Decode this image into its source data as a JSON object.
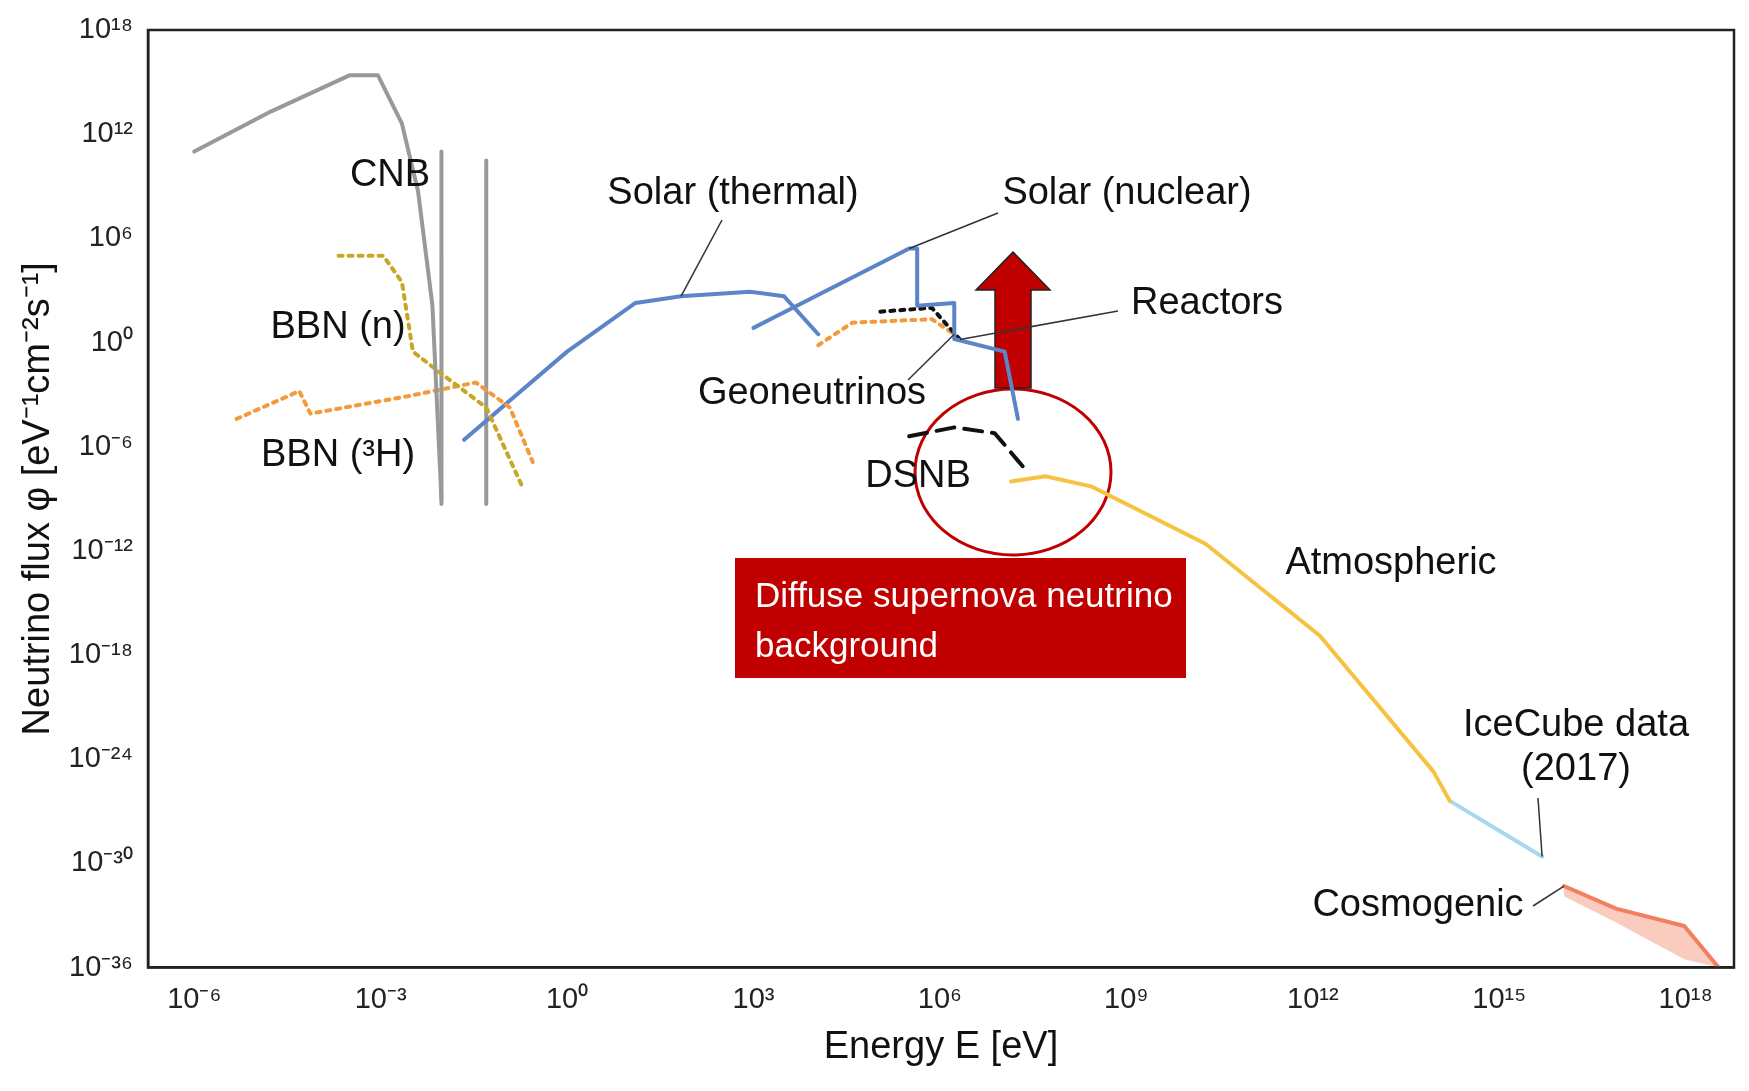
{
  "chart_data": {
    "type": "line",
    "xlabel": "Energy E [eV]",
    "ylabel": "Neutrino flux φ [eV⁻¹cm⁻²s⁻¹]",
    "log": "xy",
    "grid": false,
    "legend": false,
    "marker": "none",
    "xlim": [
      1.8e-07,
      6e+18
    ],
    "ylim": [
      1e-36,
      1e+18
    ],
    "xticks": [
      {
        "value": 1e-06,
        "label": "10⁻⁶"
      },
      {
        "value": 0.001,
        "label": "10⁻³"
      },
      {
        "value": 1,
        "label": "10⁰"
      },
      {
        "value": 1000.0,
        "label": "10³"
      },
      {
        "value": 1000000.0,
        "label": "10⁶"
      },
      {
        "value": 1000000000.0,
        "label": "10⁹"
      },
      {
        "value": 1000000000000.0,
        "label": "10¹²"
      },
      {
        "value": 1000000000000000.0,
        "label": "10¹⁵"
      },
      {
        "value": 1e+18,
        "label": "10¹⁸"
      }
    ],
    "yticks": [
      {
        "value": 1e-36,
        "label": "10⁻³⁶"
      },
      {
        "value": 1e-30,
        "label": "10⁻³⁰"
      },
      {
        "value": 1e-24,
        "label": "10⁻²⁴"
      },
      {
        "value": 1e-18,
        "label": "10⁻¹⁸"
      },
      {
        "value": 1e-12,
        "label": "10⁻¹²"
      },
      {
        "value": 1e-06,
        "label": "10⁻⁶"
      },
      {
        "value": 1,
        "label": "10⁰"
      },
      {
        "value": 1000000.0,
        "label": "10⁶"
      },
      {
        "value": 1000000000000.0,
        "label": "10¹²"
      },
      {
        "value": 1e+18,
        "label": "10¹⁸"
      }
    ],
    "series": [
      {
        "name": "CNB",
        "color": "#999999",
        "line_style": "solid",
        "x": [
          1e-06,
          1.7e-05,
          0.00032,
          0.0009,
          0.0022,
          0.004,
          0.0068,
          0.0095
        ],
        "values": [
          100000000000.0,
          20000000000000.0,
          2500000000000000.0,
          2500000000000000.0,
          4000000000000.0,
          500000000.0,
          140,
          1e-09
        ]
      },
      {
        "name": "BBN (n)",
        "color": "#c8a628",
        "line_style": "dotted",
        "x": [
          0.00021,
          0.0011,
          0.0022,
          0.0033,
          0.0095,
          0.05,
          0.19
        ],
        "values": [
          100000.0,
          100000.0,
          3000,
          0.3,
          0.016,
          0.00018,
          5e-09
        ]
      },
      {
        "name": "BBN (³H)",
        "color": "#f39a3a",
        "line_style": "dotted",
        "x": [
          4.8e-06,
          4.9e-05,
          7.4e-05,
          0.0027,
          0.034,
          0.12,
          0.28
        ],
        "values": [
          4e-05,
          0.0016,
          8e-05,
          0.0008,
          0.005,
          0.00018,
          1.3e-07
        ]
      },
      {
        "name": "Solar (thermal)",
        "color": "#5b85c8",
        "line_style": "solid",
        "x": [
          0.022,
          1,
          12.6,
          68,
          870,
          3100,
          11000.0
        ],
        "values": [
          2.5e-06,
          0.3,
          190,
          460,
          850,
          460,
          3
        ]
      },
      {
        "name": "Solar (nuclear)",
        "color": "#5b85c8",
        "line_style": "solid",
        "x": [
          1000,
          320000.0,
          430000.0,
          430000.0,
          1700000.0,
          1700000.0,
          11000000.0,
          18000000.0
        ],
        "values": [
          7,
          260000.0,
          260000.0,
          130,
          190,
          1.6,
          0.3,
          4e-05
        ]
      },
      {
        "name": "Reactors",
        "color": "#111111",
        "line_style": "dotted",
        "x": [
          110000.0,
          740000.0,
          2100000.0
        ],
        "values": [
          60,
          100,
          1.5
        ]
      },
      {
        "name": "Geoneutrinos",
        "color": "#f39a3a",
        "line_style": "dotted",
        "x": [
          11000.0,
          39000.0,
          740000.0,
          1700000.0
        ],
        "values": [
          0.7,
          14,
          22,
          3
        ]
      },
      {
        "name": "DSNB",
        "color": "#111111",
        "line_style": "dashed",
        "x": [
          320000.0,
          1700000.0,
          7600000.0,
          27000000.0
        ],
        "values": [
          4e-06,
          1.3e-05,
          6e-06,
          2.8e-08
        ]
      },
      {
        "name": "Atmospheric",
        "color": "#f5c242",
        "line_style": "solid",
        "x": [
          14000000.0,
          50000000.0,
          280000000.0,
          19000000000.0,
          1300000000000.0,
          87000000000000.0,
          160000000000000.0
        ],
        "values": [
          1e-08,
          2e-08,
          5e-09,
          2.5e-12,
          1.3e-17,
          2e-25,
          4e-27
        ]
      },
      {
        "name": "IceCube data (2017)",
        "color": "#a8d8f0",
        "line_style": "solid",
        "x": [
          160000000000000.0,
          4900000000000000.0
        ],
        "values": [
          4e-27,
          2.5e-30
        ]
      },
      {
        "name": "Cosmogenic",
        "color": "#f08060",
        "line_style": "solid",
        "x": [
          1.1e+16,
          7.6e+16,
          9.5e+17,
          3.4e+18
        ],
        "values": [
          5e-32,
          2.5e-33,
          2.5e-34,
          1e-36
        ],
        "lower": [
          1.3e-32,
          4e-34,
          3e-36,
          1e-36
        ],
        "upper": [
          5e-32,
          2.5e-33,
          2.5e-34,
          1e-36
        ]
      },
      {
        "color": "#999999",
        "line_style": "solid",
        "x": [
          0.0095,
          0.0095
        ],
        "values": [
          100000000000.0,
          5e-10
        ]
      },
      {
        "color": "#999999",
        "line_style": "solid",
        "x": [
          0.05,
          0.05
        ],
        "values": [
          30000000000.0,
          5e-10
        ]
      }
    ],
    "annotations": [
      "Diffuse supernova neutrino background"
    ]
  }
}
